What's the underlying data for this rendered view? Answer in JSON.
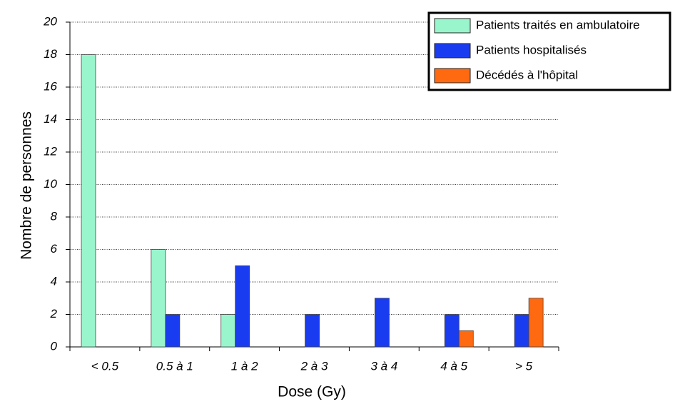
{
  "chart_data": {
    "type": "bar",
    "x_label": "Dose (Gy)",
    "y_label": "Nombre de personnes",
    "categories": [
      "< 0.5",
      "0.5 à 1",
      "1 à 2",
      "2 à 3",
      "3 à 4",
      "4 à 5",
      "> 5"
    ],
    "series": [
      {
        "name": "Patients traités en ambulatoire",
        "color": "#99f5cc",
        "values": [
          18,
          6,
          2,
          0,
          0,
          0,
          0
        ]
      },
      {
        "name": "Patients hospitalisés",
        "color": "#1a3cf0",
        "values": [
          0,
          2,
          5,
          2,
          3,
          2,
          2
        ]
      },
      {
        "name": "Décédés à l'hôpital",
        "color": "#ff6a10",
        "values": [
          0,
          0,
          0,
          0,
          0,
          1,
          3
        ]
      }
    ],
    "ylim": [
      0,
      20
    ],
    "yticks": [
      0,
      2,
      4,
      6,
      8,
      10,
      12,
      14,
      16,
      18,
      20
    ],
    "grid": true,
    "legend": "upper right"
  }
}
